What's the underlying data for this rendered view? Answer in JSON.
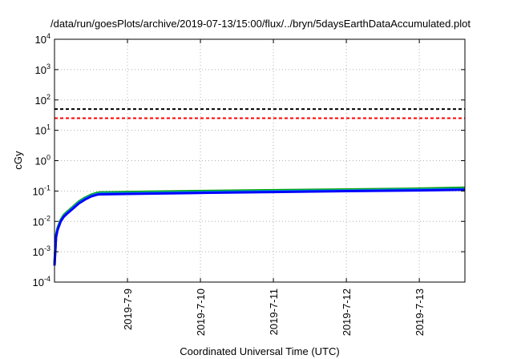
{
  "chart_data": {
    "type": "line",
    "title": "/data/run/goesPlots/archive/2019-07-13/15:00/flux/../bryn/5daysEarthDataAccumulated.plot",
    "xlabel": "Coordinated Universal Time (UTC)",
    "ylabel": "cGy",
    "y_scale": "log",
    "ylim": [
      0.0001,
      10000
    ],
    "xlim": [
      "2019-07-08 00:00",
      "2019-07-13 15:00"
    ],
    "grid": true,
    "legend": "none",
    "y_ticks": [
      {
        "value": 0.0001,
        "base": "10",
        "exp": "-4"
      },
      {
        "value": 0.001,
        "base": "10",
        "exp": "-3"
      },
      {
        "value": 0.01,
        "base": "10",
        "exp": "-2"
      },
      {
        "value": 0.1,
        "base": "10",
        "exp": "-1"
      },
      {
        "value": 1,
        "base": "10",
        "exp": "0"
      },
      {
        "value": 10,
        "base": "10",
        "exp": "1"
      },
      {
        "value": 100,
        "base": "10",
        "exp": "2"
      },
      {
        "value": 1000,
        "base": "10",
        "exp": "3"
      },
      {
        "value": 10000,
        "base": "10",
        "exp": "4"
      }
    ],
    "x_ticks": [
      {
        "value": "2019-07-09 00:00",
        "label": "2019-7-9"
      },
      {
        "value": "2019-07-10 00:00",
        "label": "2019-7-10"
      },
      {
        "value": "2019-07-11 00:00",
        "label": "2019-7-11"
      },
      {
        "value": "2019-07-12 00:00",
        "label": "2019-7-12"
      },
      {
        "value": "2019-07-13 00:00",
        "label": "2019-7-13"
      }
    ],
    "reference_lines": [
      {
        "y": 50,
        "color": "#000000",
        "style": "dashed"
      },
      {
        "y": 25,
        "color": "#ff0000",
        "style": "dashed"
      }
    ],
    "series": [
      {
        "color": "#00a000",
        "x": [
          "2019-07-08 00:00",
          "2019-07-08 00:30",
          "2019-07-08 01:00",
          "2019-07-08 02:00",
          "2019-07-08 03:00",
          "2019-07-08 04:00",
          "2019-07-08 06:00",
          "2019-07-08 08:00",
          "2019-07-08 10:00",
          "2019-07-08 12:00",
          "2019-07-08 14:00",
          "2019-07-08 15:00",
          "2019-07-09 00:00",
          "2019-07-10 00:00",
          "2019-07-11 00:00",
          "2019-07-12 00:00",
          "2019-07-13 00:00",
          "2019-07-13 15:00"
        ],
        "y": [
          0.0004,
          0.0035,
          0.006,
          0.011,
          0.016,
          0.02,
          0.03,
          0.045,
          0.06,
          0.075,
          0.087,
          0.09,
          0.093,
          0.1,
          0.106,
          0.112,
          0.12,
          0.128
        ]
      },
      {
        "color": "#00a0c0",
        "x": [
          "2019-07-08 00:00",
          "2019-07-08 00:30",
          "2019-07-08 01:00",
          "2019-07-08 02:00",
          "2019-07-08 03:00",
          "2019-07-08 04:00",
          "2019-07-08 06:00",
          "2019-07-08 08:00",
          "2019-07-08 10:00",
          "2019-07-08 12:00",
          "2019-07-08 14:00",
          "2019-07-08 15:00",
          "2019-07-09 00:00",
          "2019-07-10 00:00",
          "2019-07-11 00:00",
          "2019-07-12 00:00",
          "2019-07-13 00:00",
          "2019-07-13 15:00"
        ],
        "y": [
          0.00037,
          0.0031,
          0.0055,
          0.0102,
          0.0148,
          0.0186,
          0.028,
          0.042,
          0.056,
          0.07,
          0.081,
          0.084,
          0.086,
          0.093,
          0.099,
          0.105,
          0.112,
          0.118
        ]
      },
      {
        "color": "#0000ff",
        "x": [
          "2019-07-08 00:00",
          "2019-07-08 00:30",
          "2019-07-08 01:00",
          "2019-07-08 02:00",
          "2019-07-08 03:00",
          "2019-07-08 04:00",
          "2019-07-08 06:00",
          "2019-07-08 08:00",
          "2019-07-08 10:00",
          "2019-07-08 12:00",
          "2019-07-08 14:00",
          "2019-07-08 15:00",
          "2019-07-09 00:00",
          "2019-07-10 00:00",
          "2019-07-11 00:00",
          "2019-07-12 00:00",
          "2019-07-13 00:00",
          "2019-07-13 15:00"
        ],
        "y": [
          0.00035,
          0.003,
          0.0052,
          0.0098,
          0.014,
          0.0175,
          0.026,
          0.039,
          0.052,
          0.066,
          0.076,
          0.078,
          0.08,
          0.087,
          0.093,
          0.099,
          0.105,
          0.11
        ]
      }
    ]
  }
}
